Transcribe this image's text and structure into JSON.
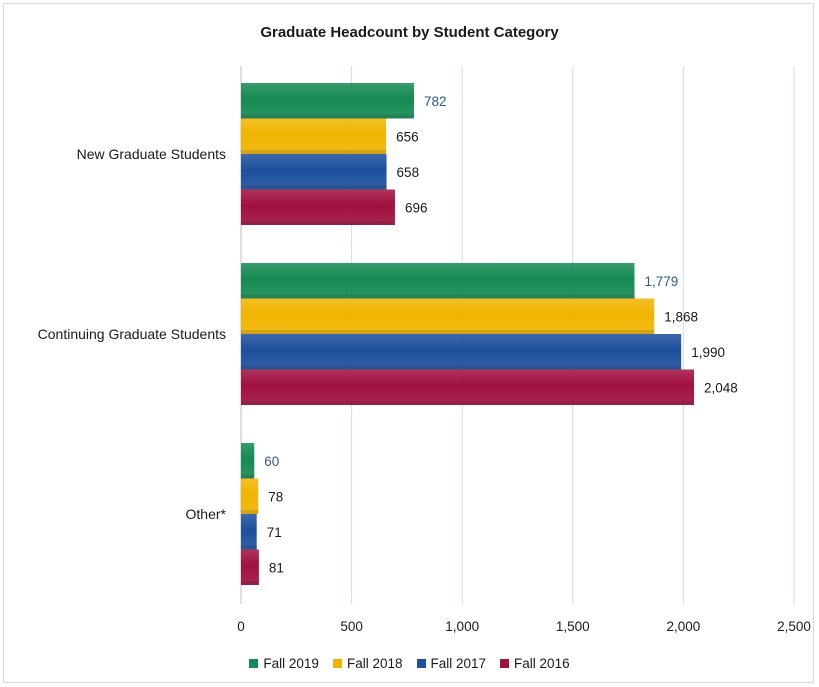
{
  "chart_data": {
    "type": "bar",
    "orientation": "horizontal",
    "title": "Graduate Headcount by Student Category",
    "categories": [
      "New Graduate Students",
      "Continuing Graduate Students",
      "Other*"
    ],
    "series": [
      {
        "name": "Fall 2019",
        "color": "#158a52",
        "values": [
          782,
          1779,
          60
        ],
        "labels": [
          "782",
          "1,779",
          "60"
        ],
        "label_color": "#2e5c8a"
      },
      {
        "name": "Fall 2018",
        "color": "#f0b400",
        "values": [
          656,
          1868,
          78
        ],
        "labels": [
          "656",
          "1,868",
          "78"
        ],
        "label_color": "#1a1a1a"
      },
      {
        "name": "Fall 2017",
        "color": "#1c4f9c",
        "values": [
          658,
          1990,
          71
        ],
        "labels": [
          "658",
          "1,990",
          "71"
        ],
        "label_color": "#1a1a1a"
      },
      {
        "name": "Fall 2016",
        "color": "#a0103f",
        "values": [
          696,
          2048,
          81
        ],
        "labels": [
          "696",
          "2,048",
          "81"
        ],
        "label_color": "#1a1a1a"
      }
    ],
    "xlim": [
      0,
      2500
    ],
    "xticks": [
      0,
      500,
      1000,
      1500,
      2000,
      2500
    ],
    "xtick_labels": [
      "0",
      "500",
      "1,000",
      "1,500",
      "2,000",
      "2,500"
    ],
    "grid": "vertical",
    "legend_position": "bottom"
  }
}
